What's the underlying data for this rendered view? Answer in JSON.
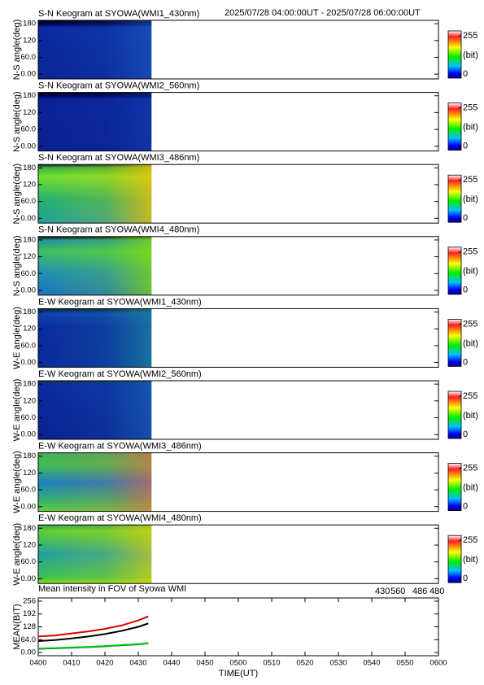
{
  "header": "2025/07/28 04:00:00UT - 2025/07/28 06:00:00UT",
  "chart_data": [
    {
      "type": "keogram",
      "title": "S-N Keogram at SYOWA(WMI1_430nm)",
      "y_label": "N-S angle(deg)",
      "ylim": [
        -17,
        192
      ],
      "yticks": [
        {
          "value": 0,
          "label": "0.00"
        },
        {
          "value": 60,
          "label": "60.0"
        },
        120,
        180
      ],
      "colorbar": {
        "label": "(bit)",
        "lim": [
          0,
          255
        ],
        "ticks": [
          0,
          255
        ]
      }
    },
    {
      "type": "keogram",
      "title": "S-N Keogram at SYOWA(WMI2_560nm)",
      "y_label": "N-S angle(deg)",
      "ylim": [
        -17,
        192
      ],
      "yticks": [
        {
          "value": 0,
          "label": "0.00"
        },
        {
          "value": 60,
          "label": "60.0"
        },
        120,
        180
      ],
      "colorbar": {
        "label": "(bit)",
        "lim": [
          0,
          255
        ],
        "ticks": [
          0,
          255
        ]
      }
    },
    {
      "type": "keogram",
      "title": "S-N Keogram at SYOWA(WMI3_486nm)",
      "y_label": "N-S angle(deg)",
      "ylim": [
        -17,
        192
      ],
      "yticks": [
        {
          "value": 0,
          "label": "0.00"
        },
        {
          "value": 60,
          "label": "60.0"
        },
        120,
        180
      ],
      "colorbar": {
        "label": "(bit)",
        "lim": [
          0,
          255
        ],
        "ticks": [
          0,
          255
        ]
      }
    },
    {
      "type": "keogram",
      "title": "S-N Keogram at SYOWA(WMI4_480nm)",
      "y_label": "N-S angle(deg)",
      "ylim": [
        -17,
        192
      ],
      "yticks": [
        {
          "value": 0,
          "label": "0.00"
        },
        {
          "value": 60,
          "label": "60.0"
        },
        120,
        180
      ],
      "colorbar": {
        "label": "(bit)",
        "lim": [
          0,
          255
        ],
        "ticks": [
          0,
          255
        ]
      }
    },
    {
      "type": "keogram",
      "title": "E-W Keogram at SYOWA(WMI1_430nm)",
      "y_label": "W-E angle(deg)",
      "ylim": [
        -17,
        192
      ],
      "yticks": [
        {
          "value": 0,
          "label": "0.00"
        },
        {
          "value": 60,
          "label": "60.0"
        },
        120,
        180
      ],
      "colorbar": {
        "label": "(bit)",
        "lim": [
          0,
          255
        ],
        "ticks": [
          0,
          255
        ]
      }
    },
    {
      "type": "keogram",
      "title": "E-W Keogram at SYOWA(WMI2_560nm)",
      "y_label": "W-E angle(deg)",
      "ylim": [
        -17,
        192
      ],
      "yticks": [
        {
          "value": 0,
          "label": "0.00"
        },
        {
          "value": 60,
          "label": "60.0"
        },
        120,
        180
      ],
      "colorbar": {
        "label": "(bit)",
        "lim": [
          0,
          255
        ],
        "ticks": [
          0,
          255
        ]
      }
    },
    {
      "type": "keogram",
      "title": "E-W Keogram at SYOWA(WMI3_486nm)",
      "y_label": "W-E angle(deg)",
      "ylim": [
        -17,
        192
      ],
      "yticks": [
        {
          "value": 0,
          "label": "0.00"
        },
        {
          "value": 60,
          "label": "60.0"
        },
        120,
        180
      ],
      "colorbar": {
        "label": "(bit)",
        "lim": [
          0,
          255
        ],
        "ticks": [
          0,
          255
        ]
      }
    },
    {
      "type": "keogram",
      "title": "E-W Keogram at SYOWA(WMI4_480nm)",
      "y_label": "W-E angle(deg)",
      "ylim": [
        -17,
        192
      ],
      "yticks": [
        {
          "value": 0,
          "label": "0.00"
        },
        {
          "value": 60,
          "label": "60.0"
        },
        120,
        180
      ],
      "colorbar": {
        "label": "(bit)",
        "lim": [
          0,
          255
        ],
        "ticks": [
          0,
          255
        ]
      }
    },
    {
      "type": "line",
      "title": "Mean intensity in FOV of Syowa WMI",
      "x_label": "TIME(UT)",
      "y_label": "MEAN(BIT)",
      "x": [
        0,
        5,
        10,
        15,
        20,
        25,
        30,
        33
      ],
      "series": [
        {
          "name": "430",
          "color": "#0000cc",
          "values": [
            19,
            21,
            24,
            27,
            31,
            36,
            41,
            47
          ]
        },
        {
          "name": "560",
          "color": "#00cc00",
          "values": [
            20,
            22,
            25,
            28,
            32,
            37,
            42,
            46
          ]
        },
        {
          "name": "486",
          "color": "#dd0000",
          "values": [
            80,
            85,
            95,
            105,
            118,
            135,
            160,
            180
          ]
        },
        {
          "name": "480",
          "color": "#000000",
          "values": [
            57,
            62,
            70,
            80,
            92,
            108,
            128,
            145
          ]
        }
      ],
      "xlim": [
        0,
        120
      ],
      "xticks": [
        {
          "value": 0,
          "label": "0400"
        },
        {
          "value": 10,
          "label": "0410"
        },
        {
          "value": 20,
          "label": "0420"
        },
        {
          "value": 30,
          "label": "0430"
        },
        {
          "value": 40,
          "label": "0440"
        },
        {
          "value": 50,
          "label": "0450"
        },
        {
          "value": 60,
          "label": "0500"
        },
        {
          "value": 70,
          "label": "0510"
        },
        {
          "value": 80,
          "label": "0520"
        },
        {
          "value": 90,
          "label": "0530"
        },
        {
          "value": 100,
          "label": "0540"
        },
        {
          "value": 110,
          "label": "0550"
        },
        {
          "value": 120,
          "label": "0600"
        }
      ],
      "ylim": [
        -16,
        272
      ],
      "yticks": [
        {
          "value": 0,
          "label": "0.00"
        },
        {
          "value": 64,
          "label": "64.0"
        },
        128,
        192,
        256
      ]
    }
  ]
}
